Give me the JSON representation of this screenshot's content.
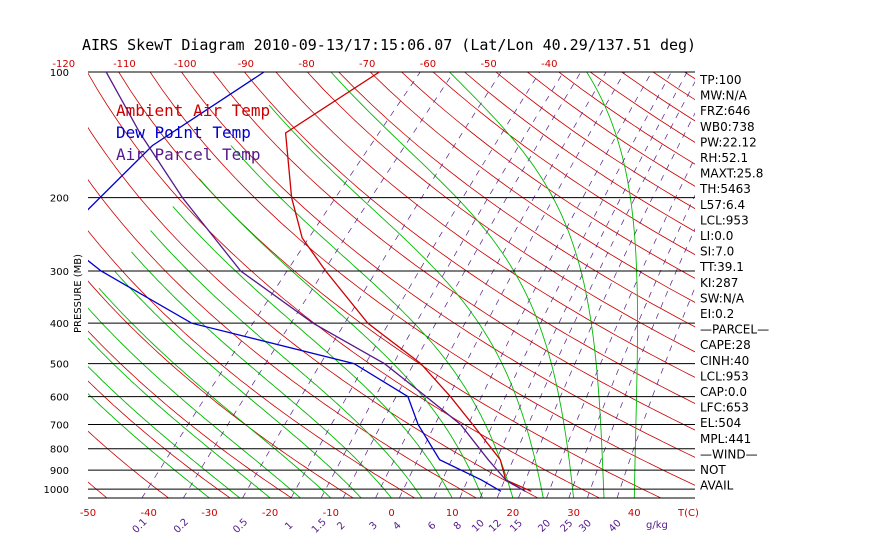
{
  "title": "AIRS SkewT Diagram 2010-09-13/17:15:06.07 (Lat/Lon 40.29/137.51 deg)",
  "colors": {
    "temp": "#cc0000",
    "dew": "#0000cc",
    "parcel": "#551a8b",
    "dry_adiabat": "#cc0000",
    "moist_adiabat": "#00bb00",
    "mixing_ratio": "#551a8b",
    "isobar": "#000000",
    "axis_tick_red": "#cc0000",
    "axis_tick_purple": "#551a8b"
  },
  "chart_data": {
    "type": "line",
    "title": "AIRS SkewT Diagram 2010-09-13/17:15:06.07 (Lat/Lon 40.29/137.51 deg)",
    "ylabel": "PRESSURE (MB)",
    "xlabel": "T(C)",
    "y_scale": "log",
    "ylim": [
      1050,
      100
    ],
    "pressure_levels": [
      100,
      200,
      300,
      400,
      500,
      600,
      700,
      800,
      900,
      1000
    ],
    "bottom_temp_ticks": [
      -50,
      -40,
      -30,
      -20,
      -10,
      0,
      10,
      20,
      30,
      40
    ],
    "top_temp_ticks": [
      -120,
      -110,
      -100,
      -90,
      -80,
      -70,
      -60,
      -50,
      -40
    ],
    "xlabel_units": "T(C)",
    "mixing_ratio_labels": [
      "0.1",
      "0.2",
      "0.5",
      "1",
      "1.5",
      "2",
      "3",
      "4",
      "6",
      "8",
      "10",
      "12",
      "15",
      "20",
      "25",
      "30",
      "40"
    ],
    "mixing_ratio_units": "g/kg",
    "legend": [
      {
        "label": "Ambient Air Temp",
        "color": "#cc0000"
      },
      {
        "label": "Dew Point Temp",
        "color": "#0000cc"
      },
      {
        "label": "Air Parcel Temp",
        "color": "#551a8b"
      }
    ],
    "series": [
      {
        "name": "Ambient Air Temp",
        "color": "#cc0000",
        "points": [
          {
            "p": 100,
            "t": -68
          },
          {
            "p": 140,
            "t": -74
          },
          {
            "p": 200,
            "t": -63
          },
          {
            "p": 250,
            "t": -55
          },
          {
            "p": 300,
            "t": -46
          },
          {
            "p": 400,
            "t": -31
          },
          {
            "p": 500,
            "t": -16
          },
          {
            "p": 600,
            "t": -6
          },
          {
            "p": 700,
            "t": 2
          },
          {
            "p": 850,
            "t": 12
          },
          {
            "p": 950,
            "t": 16
          },
          {
            "p": 1012,
            "t": 22
          }
        ]
      },
      {
        "name": "Dew Point Temp",
        "color": "#0000cc",
        "points": [
          {
            "p": 100,
            "t": -87
          },
          {
            "p": 150,
            "t": -94
          },
          {
            "p": 250,
            "t": -95
          },
          {
            "p": 300,
            "t": -83
          },
          {
            "p": 400,
            "t": -60
          },
          {
            "p": 500,
            "t": -27
          },
          {
            "p": 600,
            "t": -13
          },
          {
            "p": 700,
            "t": -7
          },
          {
            "p": 850,
            "t": 2
          },
          {
            "p": 950,
            "t": 12
          },
          {
            "p": 1012,
            "t": 17
          }
        ]
      },
      {
        "name": "Air Parcel Temp",
        "color": "#551a8b",
        "points": [
          {
            "p": 100,
            "t": -113
          },
          {
            "p": 140,
            "t": -98
          },
          {
            "p": 200,
            "t": -81
          },
          {
            "p": 300,
            "t": -60
          },
          {
            "p": 400,
            "t": -40
          },
          {
            "p": 500,
            "t": -22
          },
          {
            "p": 600,
            "t": -10
          },
          {
            "p": 700,
            "t": 0
          },
          {
            "p": 850,
            "t": 10
          },
          {
            "p": 950,
            "t": 16
          },
          {
            "p": 1012,
            "t": 21
          }
        ]
      }
    ]
  },
  "indices": [
    "TP:100",
    "MW:N/A",
    "FRZ:646",
    "WB0:738",
    "PW:22.12",
    "RH:52.1",
    "MAXT:25.8",
    "TH:5463",
    "L57:6.4",
    "LCL:953",
    "LI:0.0",
    "SI:7.0",
    "TT:39.1",
    "KI:287",
    "SW:N/A",
    "EI:0.2",
    "—PARCEL—",
    "CAPE:28",
    "CINH:40",
    "LCL:953",
    "CAP:0.0",
    "LFC:653",
    "EL:504",
    "MPL:441",
    "—WIND—",
    "NOT",
    "AVAIL"
  ]
}
